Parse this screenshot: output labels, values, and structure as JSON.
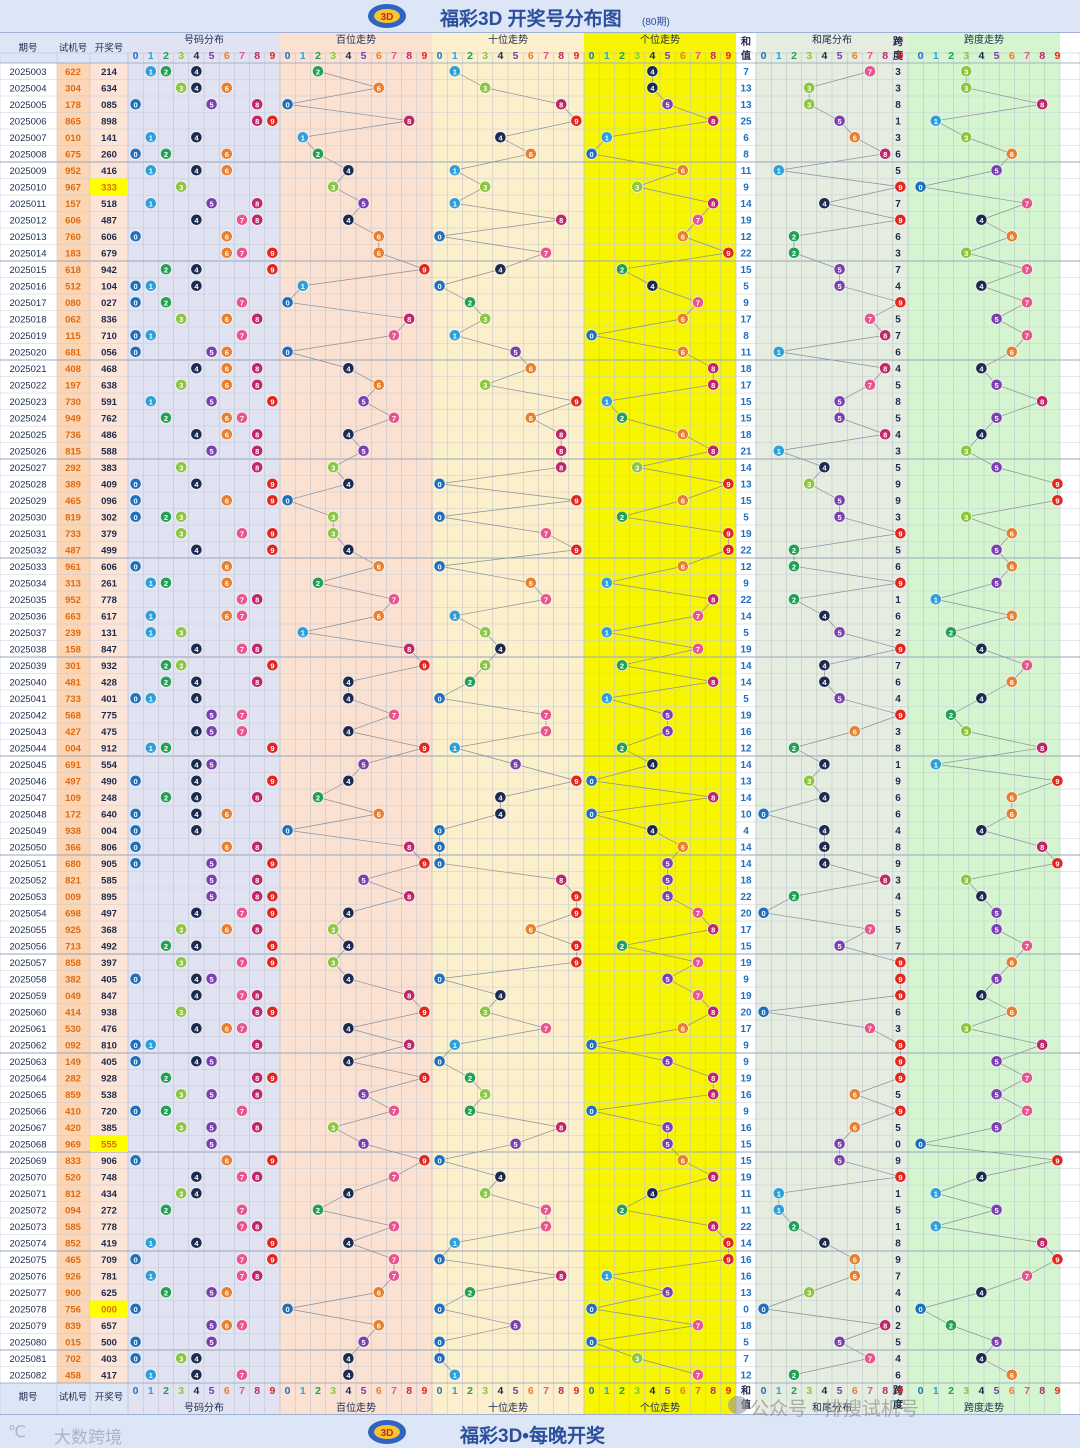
{
  "header": {
    "title": "福彩3D 开奖号分布图",
    "subtitle": "(80期)"
  },
  "footer": {
    "title": "福彩3D•每晚开奖",
    "brand": "大数跨境",
    "watermark": "公众号 · 排搜试机号"
  },
  "colors": {
    "digit": [
      "#1f6fbf",
      "#2e9fd9",
      "#23a055",
      "#8cc63f",
      "#1c2a4f",
      "#7a3fb0",
      "#e77f2e",
      "#e8548c",
      "#c02567",
      "#e0261d"
    ],
    "panel": [
      "#e1e3f3",
      "#fbe1d2",
      "#fcefcb",
      "#f7f500",
      "#e5ece0",
      "#d5f5d0"
    ],
    "shot_bg": "#fcd5b4",
    "draw_bg": "#fce4d6",
    "triple_bg": "#ffff00"
  },
  "columns": {
    "period": "期号",
    "shot": "试机号",
    "draw": "开奖号",
    "he": [
      "和",
      "值"
    ],
    "kua": [
      "跨",
      "度"
    ]
  },
  "sections": [
    "号码分布",
    "百位走势",
    "十位走势",
    "个位走势",
    "和尾分布",
    "跨度走势"
  ],
  "digits": [
    "0",
    "1",
    "2",
    "3",
    "4",
    "5",
    "6",
    "7",
    "8",
    "9"
  ],
  "chart_data": {
    "type": "table",
    "title": "福彩3D 开奖号分布图",
    "rows": [
      [
        "2025003",
        "622",
        "214"
      ],
      [
        "2025004",
        "304",
        "634"
      ],
      [
        "2025005",
        "178",
        "085"
      ],
      [
        "2025006",
        "865",
        "898"
      ],
      [
        "2025007",
        "010",
        "141"
      ],
      [
        "2025008",
        "675",
        "260"
      ],
      [
        "2025009",
        "952",
        "416"
      ],
      [
        "2025010",
        "967",
        "333"
      ],
      [
        "2025011",
        "157",
        "518"
      ],
      [
        "2025012",
        "606",
        "487"
      ],
      [
        "2025013",
        "760",
        "606"
      ],
      [
        "2025014",
        "183",
        "679"
      ],
      [
        "2025015",
        "618",
        "942"
      ],
      [
        "2025016",
        "512",
        "104"
      ],
      [
        "2025017",
        "080",
        "027"
      ],
      [
        "2025018",
        "062",
        "836"
      ],
      [
        "2025019",
        "115",
        "710"
      ],
      [
        "2025020",
        "681",
        "056"
      ],
      [
        "2025021",
        "408",
        "468"
      ],
      [
        "2025022",
        "197",
        "638"
      ],
      [
        "2025023",
        "730",
        "591"
      ],
      [
        "2025024",
        "949",
        "762"
      ],
      [
        "2025025",
        "736",
        "486"
      ],
      [
        "2025026",
        "815",
        "588"
      ],
      [
        "2025027",
        "292",
        "383"
      ],
      [
        "2025028",
        "389",
        "409"
      ],
      [
        "2025029",
        "465",
        "096"
      ],
      [
        "2025030",
        "819",
        "302"
      ],
      [
        "2025031",
        "733",
        "379"
      ],
      [
        "2025032",
        "487",
        "499"
      ],
      [
        "2025033",
        "961",
        "606"
      ],
      [
        "2025034",
        "313",
        "261"
      ],
      [
        "2025035",
        "952",
        "778"
      ],
      [
        "2025036",
        "663",
        "617"
      ],
      [
        "2025037",
        "239",
        "131"
      ],
      [
        "2025038",
        "158",
        "847"
      ],
      [
        "2025039",
        "301",
        "932"
      ],
      [
        "2025040",
        "481",
        "428"
      ],
      [
        "2025041",
        "733",
        "401"
      ],
      [
        "2025042",
        "568",
        "775"
      ],
      [
        "2025043",
        "427",
        "475"
      ],
      [
        "2025044",
        "004",
        "912"
      ],
      [
        "2025045",
        "691",
        "554"
      ],
      [
        "2025046",
        "497",
        "490"
      ],
      [
        "2025047",
        "109",
        "248"
      ],
      [
        "2025048",
        "172",
        "640"
      ],
      [
        "2025049",
        "938",
        "004"
      ],
      [
        "2025050",
        "366",
        "806"
      ],
      [
        "2025051",
        "680",
        "905"
      ],
      [
        "2025052",
        "821",
        "585"
      ],
      [
        "2025053",
        "009",
        "895"
      ],
      [
        "2025054",
        "698",
        "497"
      ],
      [
        "2025055",
        "925",
        "368"
      ],
      [
        "2025056",
        "713",
        "492"
      ],
      [
        "2025057",
        "858",
        "397"
      ],
      [
        "2025058",
        "382",
        "405"
      ],
      [
        "2025059",
        "049",
        "847"
      ],
      [
        "2025060",
        "414",
        "938"
      ],
      [
        "2025061",
        "530",
        "476"
      ],
      [
        "2025062",
        "092",
        "810"
      ],
      [
        "2025063",
        "149",
        "405"
      ],
      [
        "2025064",
        "282",
        "928"
      ],
      [
        "2025065",
        "859",
        "538"
      ],
      [
        "2025066",
        "410",
        "720"
      ],
      [
        "2025067",
        "420",
        "385"
      ],
      [
        "2025068",
        "969",
        "555"
      ],
      [
        "2025069",
        "833",
        "906"
      ],
      [
        "2025070",
        "520",
        "748"
      ],
      [
        "2025071",
        "812",
        "434"
      ],
      [
        "2025072",
        "094",
        "272"
      ],
      [
        "2025073",
        "585",
        "778"
      ],
      [
        "2025074",
        "852",
        "419"
      ],
      [
        "2025075",
        "465",
        "709"
      ],
      [
        "2025076",
        "926",
        "781"
      ],
      [
        "2025077",
        "900",
        "625"
      ],
      [
        "2025078",
        "756",
        "000"
      ],
      [
        "2025079",
        "839",
        "657"
      ],
      [
        "2025080",
        "015",
        "500"
      ],
      [
        "2025081",
        "702",
        "403"
      ],
      [
        "2025082",
        "458",
        "417"
      ]
    ]
  }
}
